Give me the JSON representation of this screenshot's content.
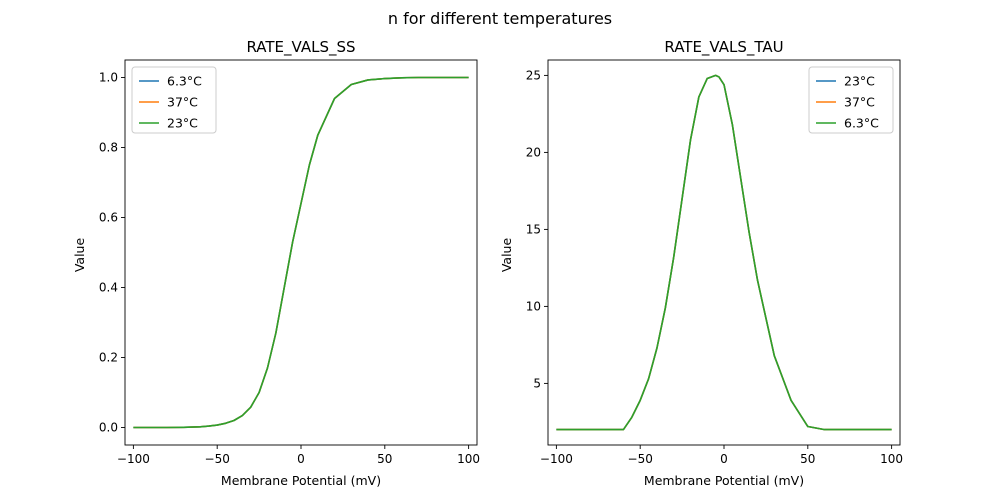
{
  "figure": {
    "title": "n for different temperatures"
  },
  "chart_data": [
    {
      "type": "line",
      "title": "RATE_VALS_SS",
      "xlabel": "Membrane Potential (mV)",
      "ylabel": "Value",
      "xlim": [
        -105,
        105
      ],
      "ylim": [
        -0.05,
        1.05
      ],
      "xticks": [
        -100,
        -50,
        0,
        50,
        100
      ],
      "xtick_labels": [
        "−100",
        "−50",
        "0",
        "50",
        "100"
      ],
      "yticks": [
        0.0,
        0.2,
        0.4,
        0.6,
        0.8,
        1.0
      ],
      "ytick_labels": [
        "0.0",
        "0.2",
        "0.4",
        "0.6",
        "0.8",
        "1.0"
      ],
      "grid": false,
      "legend_position": "top-left",
      "x": [
        -100,
        -90,
        -80,
        -70,
        -60,
        -55,
        -50,
        -45,
        -40,
        -35,
        -30,
        -25,
        -20,
        -15,
        -10,
        -5,
        0,
        5,
        10,
        20,
        30,
        40,
        50,
        60,
        70,
        80,
        90,
        100
      ],
      "series": [
        {
          "name": "6.3°C",
          "color": "#1f77b4",
          "values": [
            0.0,
            0.0,
            0.0,
            0.0005,
            0.002,
            0.004,
            0.007,
            0.012,
            0.02,
            0.034,
            0.058,
            0.1,
            0.17,
            0.27,
            0.4,
            0.53,
            0.64,
            0.75,
            0.835,
            0.94,
            0.98,
            0.993,
            0.997,
            0.999,
            1.0,
            1.0,
            1.0,
            1.0
          ]
        },
        {
          "name": "37°C",
          "color": "#ff7f0e",
          "values": [
            0.0,
            0.0,
            0.0,
            0.0005,
            0.002,
            0.004,
            0.007,
            0.012,
            0.02,
            0.034,
            0.058,
            0.1,
            0.17,
            0.27,
            0.4,
            0.53,
            0.64,
            0.75,
            0.835,
            0.94,
            0.98,
            0.993,
            0.997,
            0.999,
            1.0,
            1.0,
            1.0,
            1.0
          ]
        },
        {
          "name": "23°C",
          "color": "#2ca02c",
          "values": [
            0.0,
            0.0,
            0.0,
            0.0005,
            0.002,
            0.004,
            0.007,
            0.012,
            0.02,
            0.034,
            0.058,
            0.1,
            0.17,
            0.27,
            0.4,
            0.53,
            0.64,
            0.75,
            0.835,
            0.94,
            0.98,
            0.993,
            0.997,
            0.999,
            1.0,
            1.0,
            1.0,
            1.0
          ]
        }
      ]
    },
    {
      "type": "line",
      "title": "RATE_VALS_TAU",
      "xlabel": "Membrane Potential (mV)",
      "ylabel": "Value",
      "xlim": [
        -105,
        105
      ],
      "ylim": [
        1.0,
        26.0
      ],
      "xticks": [
        -100,
        -50,
        0,
        50,
        100
      ],
      "xtick_labels": [
        "−100",
        "−50",
        "0",
        "50",
        "100"
      ],
      "yticks": [
        5,
        10,
        15,
        20,
        25
      ],
      "ytick_labels": [
        "5",
        "10",
        "15",
        "20",
        "25"
      ],
      "grid": false,
      "legend_position": "top-right",
      "x": [
        -100,
        -90,
        -80,
        -70,
        -60,
        -55,
        -50,
        -45,
        -40,
        -35,
        -30,
        -25,
        -20,
        -15,
        -10,
        -5,
        -3,
        0,
        5,
        10,
        15,
        20,
        30,
        40,
        50,
        60,
        70,
        80,
        90,
        100
      ],
      "series": [
        {
          "name": "23°C",
          "color": "#1f77b4",
          "values": [
            2.0,
            2.0,
            2.0,
            2.0,
            2.0,
            2.8,
            3.9,
            5.3,
            7.3,
            9.9,
            13.2,
            17.0,
            20.8,
            23.6,
            24.8,
            25.0,
            24.9,
            24.4,
            21.8,
            18.3,
            14.8,
            11.7,
            6.8,
            3.9,
            2.2,
            2.0,
            2.0,
            2.0,
            2.0,
            2.0
          ]
        },
        {
          "name": "37°C",
          "color": "#ff7f0e",
          "values": [
            2.0,
            2.0,
            2.0,
            2.0,
            2.0,
            2.8,
            3.9,
            5.3,
            7.3,
            9.9,
            13.2,
            17.0,
            20.8,
            23.6,
            24.8,
            25.0,
            24.9,
            24.4,
            21.8,
            18.3,
            14.8,
            11.7,
            6.8,
            3.9,
            2.2,
            2.0,
            2.0,
            2.0,
            2.0,
            2.0
          ]
        },
        {
          "name": "6.3°C",
          "color": "#2ca02c",
          "values": [
            2.0,
            2.0,
            2.0,
            2.0,
            2.0,
            2.8,
            3.9,
            5.3,
            7.3,
            9.9,
            13.2,
            17.0,
            20.8,
            23.6,
            24.8,
            25.0,
            24.9,
            24.4,
            21.8,
            18.3,
            14.8,
            11.7,
            6.8,
            3.9,
            2.2,
            2.0,
            2.0,
            2.0,
            2.0,
            2.0
          ]
        }
      ]
    }
  ]
}
